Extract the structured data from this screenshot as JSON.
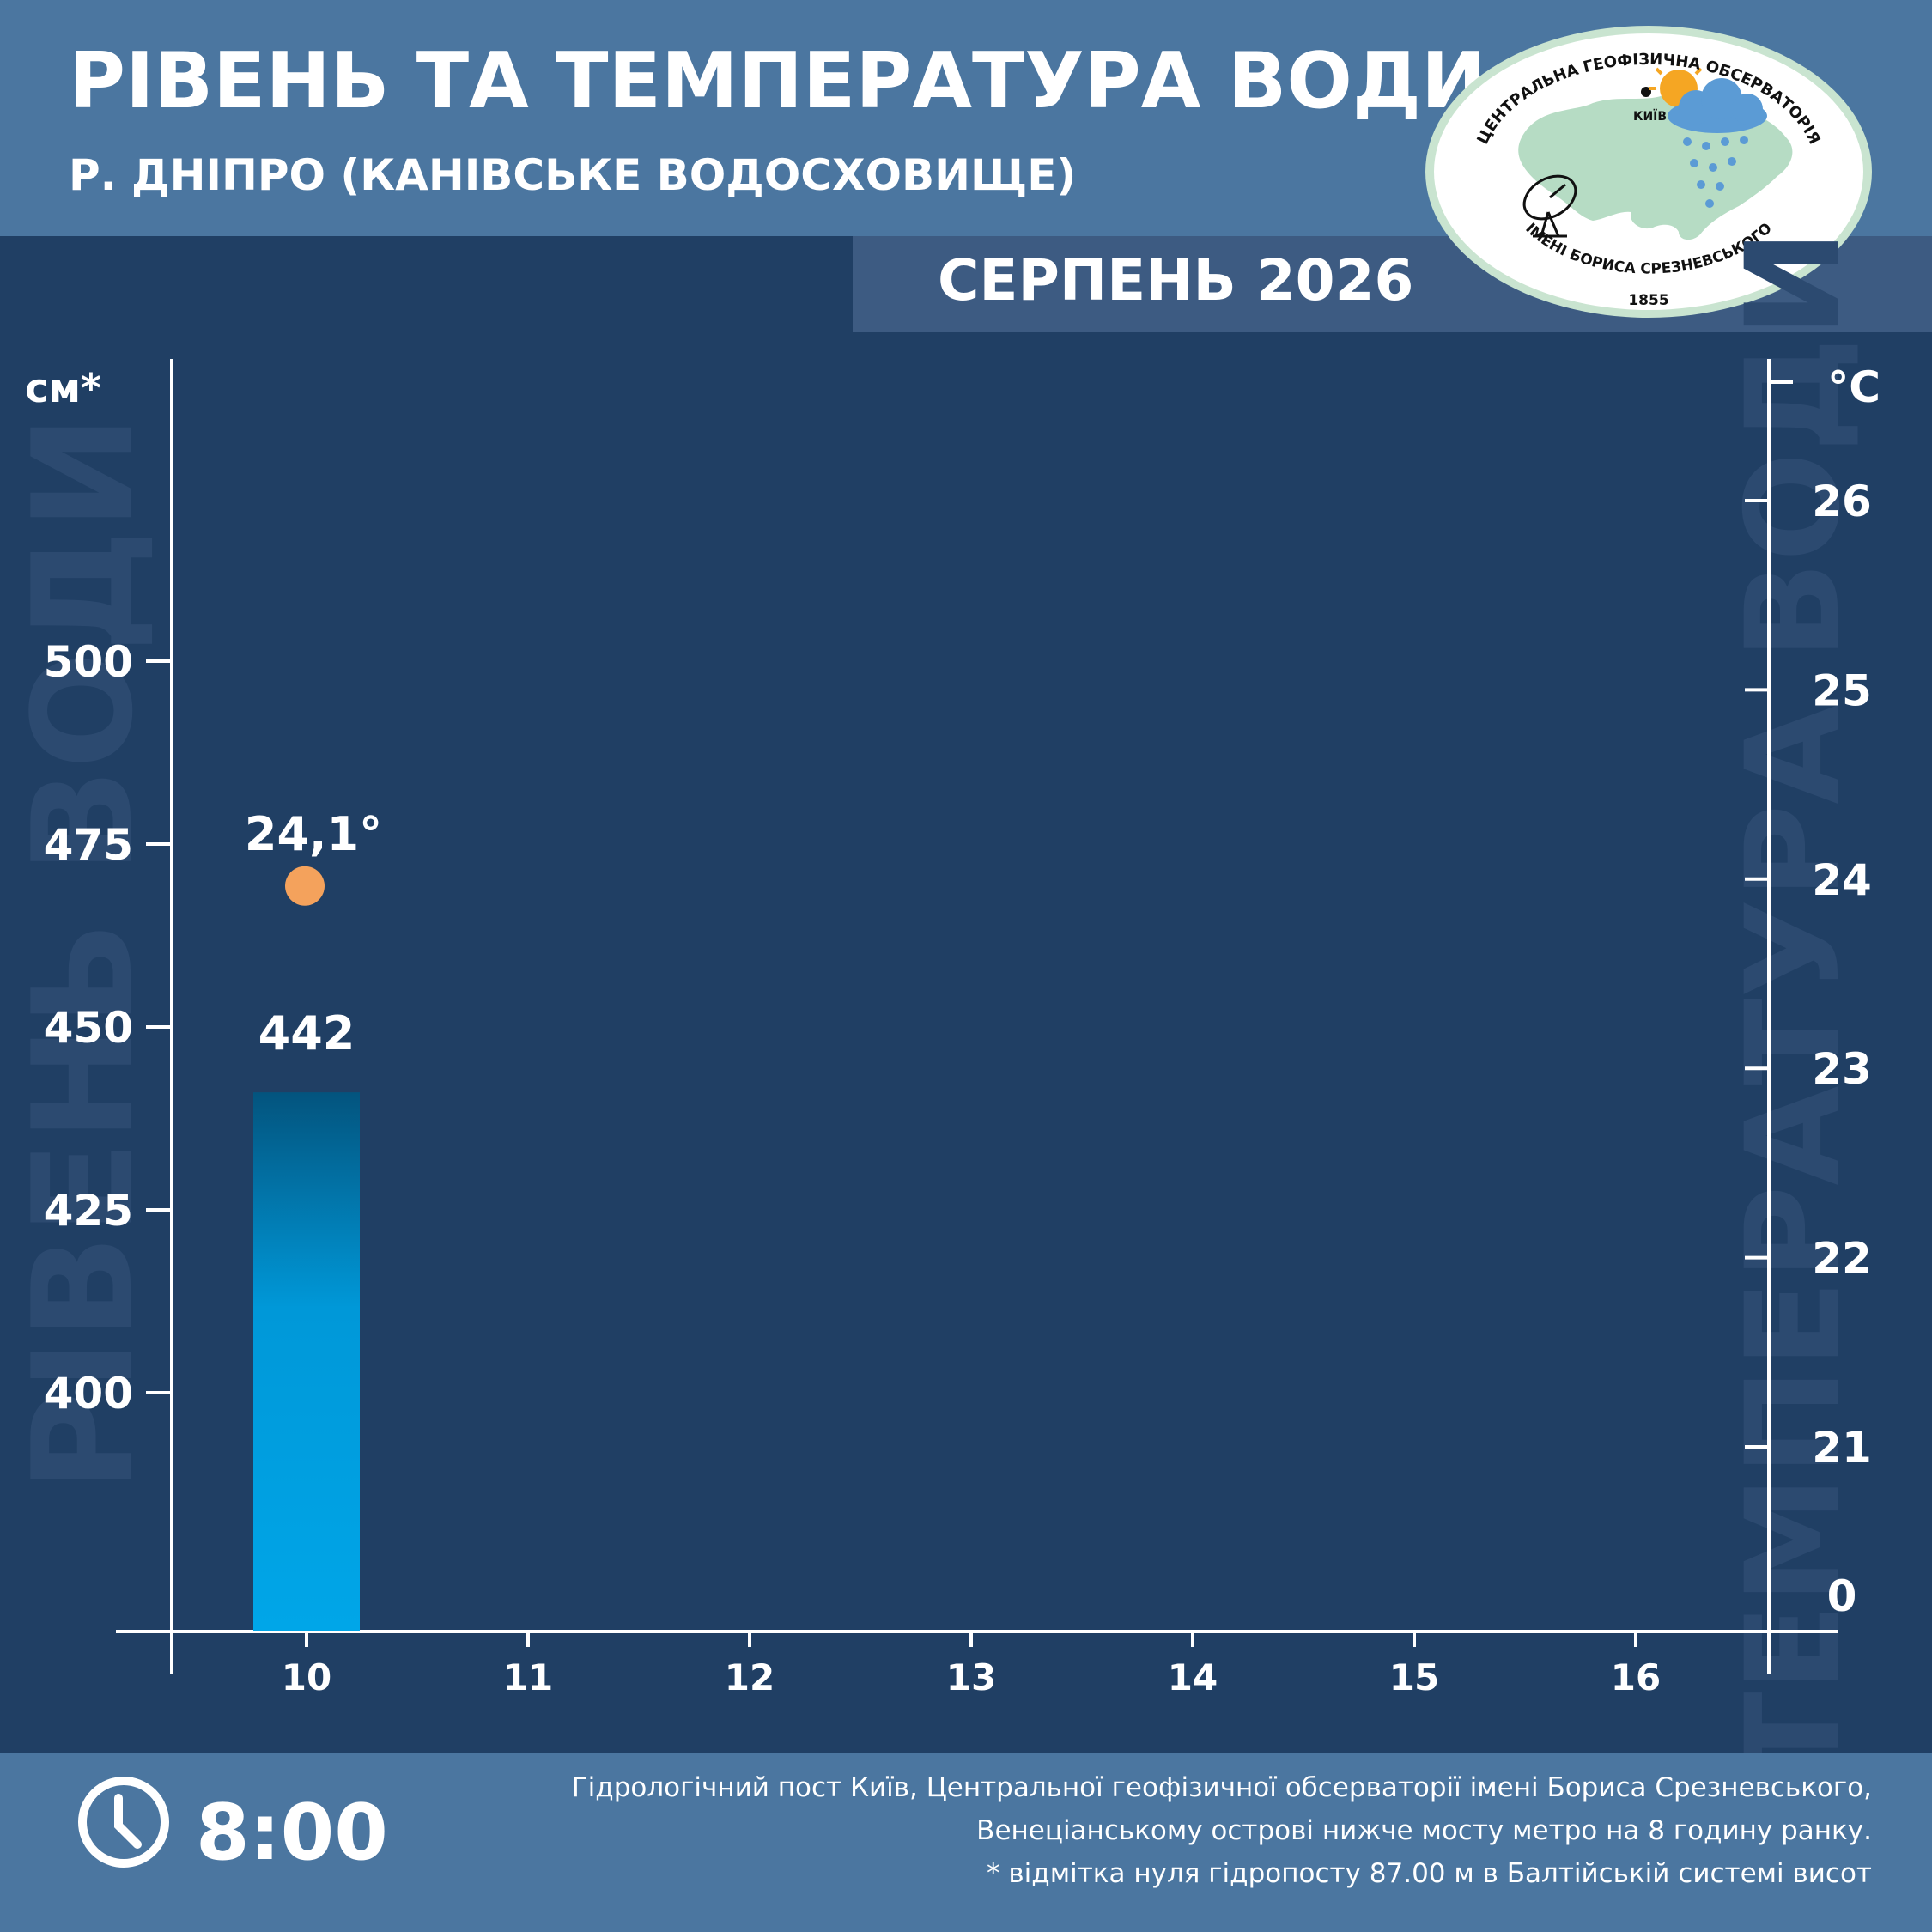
{
  "header": {
    "title": "РІВЕНЬ ТА ТЕМПЕРАТУРА ВОДИ",
    "subtitle": "Р. ДНІПРО (КАНІВСЬКЕ ВОДОСХОВИЩЕ)",
    "month": "СЕРПЕНЬ 2026"
  },
  "logo": {
    "top_text": "ЦЕНТРАЛЬНА ГЕОФІЗИЧНА ОБСЕРВАТОРІЯ",
    "bottom_text": "ІМЕНІ БОРИСА СРЕЗНЕВСЬКОГО",
    "year": "1855",
    "city": "КИЇВ"
  },
  "colors": {
    "background": "#203f64",
    "header": "#4b76a0",
    "bar_top": "#03547e",
    "bar_bottom": "#00a6e8",
    "temperature_point": "#f4a25c",
    "watermark": "#2c4a70"
  },
  "chart_data": {
    "type": "bar",
    "x": [
      10,
      11,
      12,
      13,
      14,
      15,
      16
    ],
    "level": {
      "axis_label": "см*",
      "watermark_label": "РІВЕНЬ ВОДИ",
      "ticks": [
        400,
        425,
        450,
        475,
        500
      ],
      "values": [
        442,
        null,
        null,
        null,
        null,
        null,
        null
      ],
      "labels": [
        "442",
        "",
        "",
        "",
        "",
        "",
        ""
      ]
    },
    "temperature": {
      "axis_label": "°С",
      "watermark_label": "ТЕМПЕРАТУРА ВОДИ",
      "ticks": [
        0,
        21,
        22,
        23,
        24,
        25,
        26
      ],
      "values": [
        24.1,
        null,
        null,
        null,
        null,
        null,
        null
      ],
      "labels": [
        "24,1°",
        "",
        "",
        "",
        "",
        "",
        ""
      ]
    }
  },
  "footer": {
    "time": "8:00",
    "note_lines": [
      "Гідрологічний пост Київ, Центральної геофізичної обсерваторії імені Бориса Срезневського,",
      "Венеціанському острові нижче мосту метро  на 8 годину ранку.",
      "* відмітка нуля гідропосту 87.00 м в Балтійській системі висот"
    ]
  }
}
